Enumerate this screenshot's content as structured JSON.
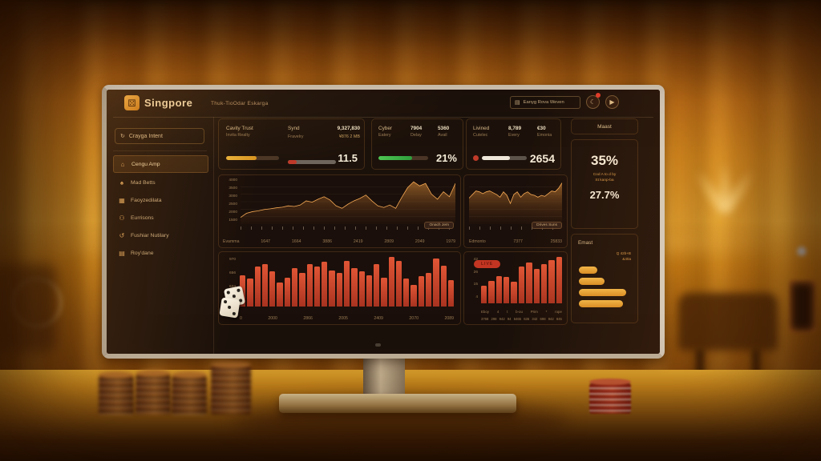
{
  "header": {
    "title": "Singpore",
    "subtitle": "Thuk-TioOdar Eskarga",
    "search_label": "Eanyg Rova Weven"
  },
  "sidebar": {
    "top_item": "Crayga Intent",
    "items": [
      {
        "label": "Cengu Amp"
      },
      {
        "label": "Mad Betts"
      },
      {
        "label": "Faoyzedilata"
      },
      {
        "label": "Eurrisons"
      },
      {
        "label": "Fushiar Nutilary"
      },
      {
        "label": "Roy'dane"
      }
    ]
  },
  "stats": {
    "card1": {
      "c1a": "Cavity Trust",
      "c1b": "Invita Realty",
      "c2_label": "Synd",
      "c2_value": "9,327,830",
      "c2_sub": "Fravelry",
      "c2_subval": "¥876 2 MB",
      "value": "11.5"
    },
    "card2": {
      "c1a": "Cyber",
      "c1b": "Eatery",
      "c2a": "7904",
      "c2b": "Delay",
      "c3a": "5360",
      "c3b": "Avail",
      "value": "21%"
    },
    "card3": {
      "c1a": "Livined",
      "c1b": "Cutelec",
      "c2a": "8,789",
      "c2b": "Every",
      "c3a": "€30",
      "c3b": "Emonia",
      "value": "2654"
    }
  },
  "rail": {
    "header": "Maast",
    "pct1": "35%",
    "sub1": "Cod A to d by",
    "sub2": "St kanp-ba",
    "pct2": "27.7%",
    "panel2_header": "Emast",
    "note1": "Q 42b+B",
    "note2": "&40a"
  },
  "chart_data": [
    {
      "type": "area",
      "legend": "Onach Jem",
      "ylabels": [
        "4000",
        "3500",
        "3000",
        "2500",
        "2000",
        "1500"
      ],
      "ylim": [
        1500,
        4200
      ],
      "footer": [
        "Evamma",
        "1647",
        "1664",
        "3886",
        "2419",
        "2809",
        "2049",
        "1979"
      ],
      "values": [
        1900,
        2150,
        2250,
        2300,
        2380,
        2420,
        2480,
        2520,
        2600,
        2560,
        2650,
        2900,
        2820,
        3000,
        3150,
        2950,
        2600,
        2450,
        2700,
        2900,
        3050,
        3250,
        2900,
        2600,
        2500,
        2650,
        2450,
        3100,
        3700,
        4050,
        3800,
        3950,
        3300,
        3000,
        3450,
        3150,
        3950
      ]
    },
    {
      "type": "bar",
      "ylabels": [
        "970",
        "656",
        "634",
        "600"
      ],
      "xlabels": [
        "0",
        "2000",
        "2866",
        "2005",
        "2409",
        "2070",
        "2089"
      ],
      "values": [
        52,
        46,
        66,
        70,
        58,
        40,
        48,
        64,
        56,
        70,
        66,
        74,
        60,
        56,
        76,
        64,
        58,
        52,
        70,
        48,
        82,
        76,
        46,
        36,
        50,
        56,
        80,
        68,
        44
      ]
    },
    {
      "type": "area",
      "legend": "Drives Suns",
      "ylim": [
        0,
        100
      ],
      "footer": [
        "Edmonto",
        "7377",
        "25833"
      ],
      "values": [
        58,
        66,
        74,
        72,
        68,
        72,
        74,
        70,
        66,
        60,
        72,
        64,
        46,
        66,
        72,
        60,
        68,
        72,
        66,
        64,
        60,
        64,
        62,
        68,
        74,
        72,
        80,
        92
      ]
    },
    {
      "type": "bar",
      "badge": "LIVE",
      "ylabels": [
        "42",
        "26",
        "15",
        "4"
      ],
      "xrow1": [
        "Eboy",
        "4",
        "t",
        "b-ou",
        "Prim",
        "*",
        "rope"
      ],
      "xrow2": [
        "3768",
        "298",
        "942",
        "94",
        "6465",
        "636",
        "342",
        "698",
        "942",
        "845"
      ],
      "values": [
        30,
        38,
        46,
        44,
        36,
        62,
        68,
        58,
        66,
        72,
        78
      ]
    },
    {
      "type": "hbar",
      "values": [
        36,
        50,
        92,
        86
      ]
    }
  ]
}
